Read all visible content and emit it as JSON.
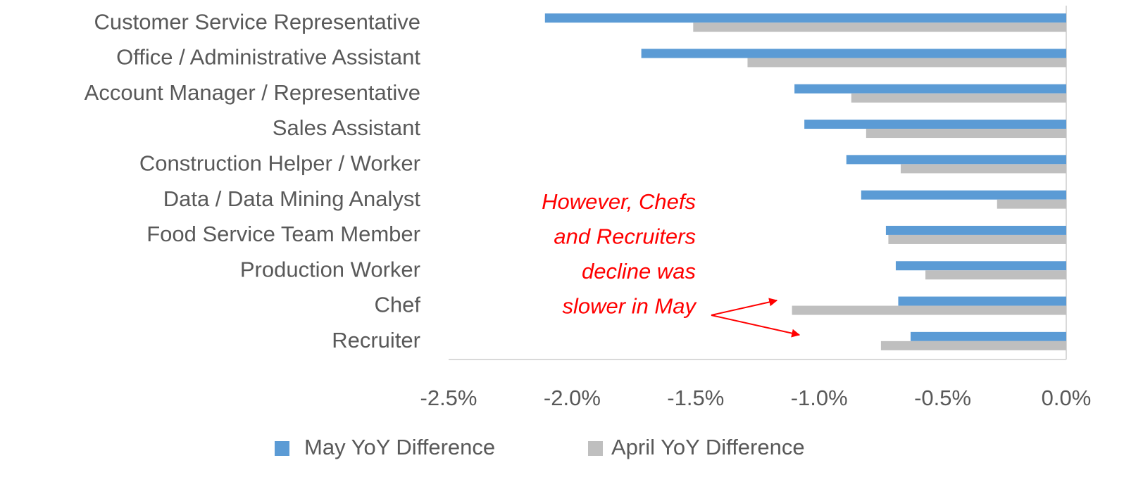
{
  "chart_data": {
    "type": "hbar",
    "categories": [
      "Customer Service Representative",
      "Office / Administrative Assistant",
      "Account Manager / Representative",
      "Sales Assistant",
      "Construction Helper / Worker",
      "Data / Data Mining Analyst",
      "Food Service Team Member",
      "Production Worker",
      "Chef",
      "Recruiter"
    ],
    "series": [
      {
        "name": "May YoY Difference",
        "color": "#5b9bd5",
        "values": [
          -2.11,
          -1.72,
          -1.1,
          -1.06,
          -0.89,
          -0.83,
          -0.73,
          -0.69,
          -0.68,
          -0.63
        ]
      },
      {
        "name": "April YoY Difference",
        "color": "#bfbfbf",
        "values": [
          -1.51,
          -1.29,
          -0.87,
          -0.81,
          -0.67,
          -0.28,
          -0.72,
          -0.57,
          -1.11,
          -0.75
        ]
      }
    ],
    "xlim": [
      -2.5,
      0
    ],
    "xticks": [
      {
        "value": -2.5,
        "label": "-2.5%"
      },
      {
        "value": -2.0,
        "label": "-2.0%"
      },
      {
        "value": -1.5,
        "label": "-1.5%"
      },
      {
        "value": -1.0,
        "label": "-1.0%"
      },
      {
        "value": -0.5,
        "label": "-0.5%"
      },
      {
        "value": 0,
        "label": "0.0%"
      }
    ],
    "annotation": [
      "However, Chefs",
      "and Recruiters",
      "decline was",
      "slower in May"
    ],
    "legend": "bottom"
  }
}
